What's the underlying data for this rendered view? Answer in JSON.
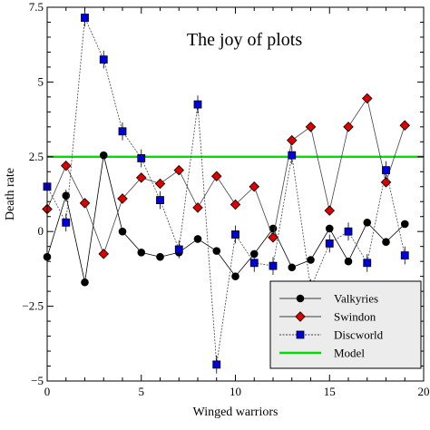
{
  "chart_data": {
    "type": "line",
    "title": "The joy of plots",
    "xlabel": "Winged warriors",
    "ylabel": "Death rate",
    "xlim": [
      0,
      20
    ],
    "ylim": [
      -5,
      7.5
    ],
    "xticks": [
      0,
      5,
      10,
      15,
      20
    ],
    "yticks": [
      -5,
      -2.5,
      0,
      2.5,
      5,
      7.5
    ],
    "xtick_labels": [
      "0",
      "5",
      "10",
      "15",
      "20"
    ],
    "ytick_labels": [
      "−5",
      "−2.5",
      "0",
      "2.5",
      "5",
      "7.5"
    ],
    "grid": false,
    "legend_position": "bottom-right",
    "x": [
      0,
      1,
      2,
      3,
      4,
      5,
      6,
      7,
      8,
      9,
      10,
      11,
      12,
      13,
      14,
      15,
      16,
      17,
      18,
      19
    ],
    "series": [
      {
        "name": "Valkyries",
        "color": "#000000",
        "marker": "circle",
        "line_style": "solid",
        "values": [
          -0.85,
          1.2,
          -1.7,
          2.55,
          0.0,
          -0.7,
          -0.85,
          -0.7,
          -0.25,
          -0.65,
          -1.5,
          -0.75,
          0.1,
          -1.2,
          -0.95,
          0.1,
          -1.0,
          0.3,
          -0.35,
          0.25
        ],
        "errors": [
          0,
          0.2,
          0,
          0,
          0,
          0,
          0,
          0,
          0,
          0,
          0,
          0,
          0,
          0,
          0,
          0,
          0,
          0,
          0,
          0
        ]
      },
      {
        "name": "Swindon",
        "color": "#dd0000",
        "marker": "diamond",
        "line_style": "solid",
        "values": [
          0.75,
          2.2,
          0.95,
          -0.75,
          1.1,
          1.8,
          1.6,
          2.05,
          0.8,
          1.85,
          0.9,
          1.5,
          -0.2,
          3.05,
          3.5,
          0.7,
          3.5,
          4.45,
          1.65,
          3.55
        ],
        "errors": [
          0,
          0,
          0,
          0,
          0,
          0,
          0,
          0,
          0,
          0,
          0,
          0,
          0,
          0,
          0,
          0,
          0,
          0,
          0,
          0
        ]
      },
      {
        "name": "Discworld",
        "color": "#0000dd",
        "marker": "square",
        "line_style": "dashed",
        "values": [
          1.5,
          0.3,
          7.15,
          5.75,
          3.35,
          2.45,
          1.05,
          -0.6,
          4.25,
          -4.45,
          -0.1,
          -1.05,
          -1.15,
          2.55,
          -1.9,
          -0.4,
          0.0,
          -1.05,
          2.05,
          -0.8
        ],
        "errors": [
          0.3,
          0.3,
          0.3,
          0.3,
          0.3,
          0.3,
          0.3,
          0.3,
          0.3,
          0.3,
          0.3,
          0.3,
          0.3,
          0.3,
          0.3,
          0.3,
          0.3,
          0.3,
          0.3,
          0.3
        ]
      },
      {
        "name": "Model",
        "color": "#00dd00",
        "marker": "none",
        "line_style": "solid",
        "x": [
          0,
          20
        ],
        "values": [
          2.5,
          2.5
        ]
      }
    ]
  }
}
